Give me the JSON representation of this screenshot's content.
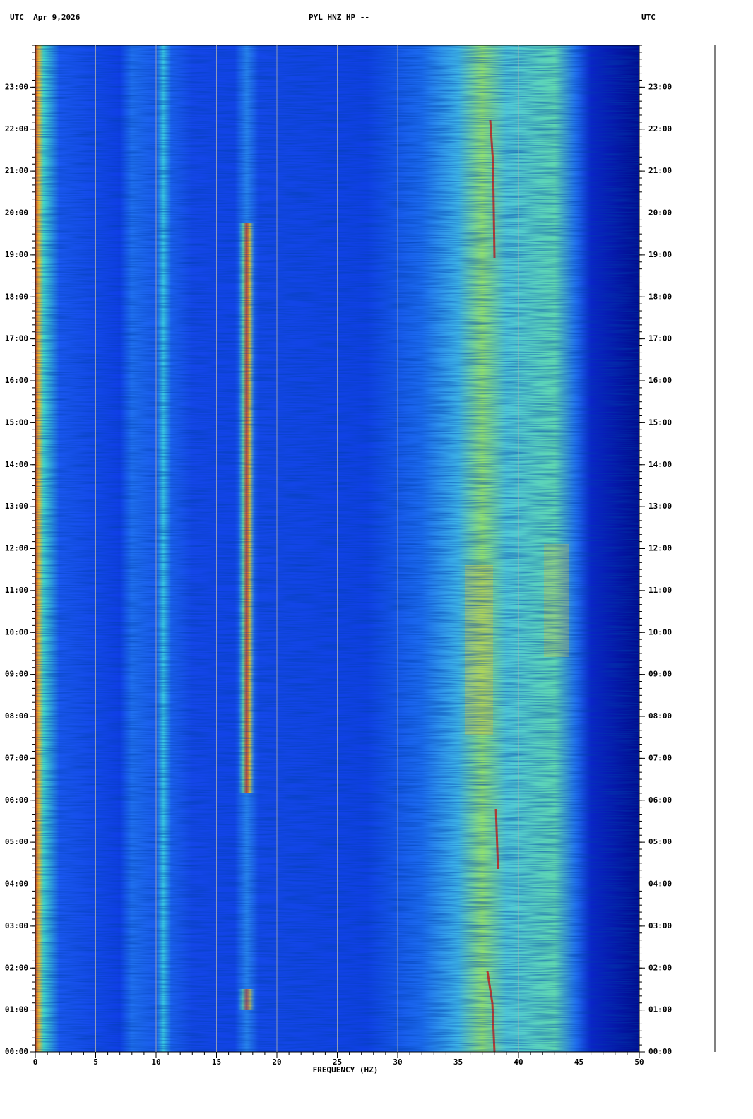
{
  "chart_data": {
    "type": "spectrogram",
    "title": "PYL HNZ HP --",
    "left_header": "UTC  Apr 9,2026",
    "right_header": "UTC",
    "x_label": "FREQUENCY (HZ)",
    "xlim": [
      0,
      50
    ],
    "xticks": [
      0,
      5,
      10,
      15,
      20,
      25,
      30,
      35,
      40,
      45,
      50
    ],
    "ylim": [
      0,
      24
    ],
    "yticks": [
      {
        "value": 0,
        "label": "00:00"
      },
      {
        "value": 1,
        "label": "01:00"
      },
      {
        "value": 2,
        "label": "02:00"
      },
      {
        "value": 3,
        "label": "03:00"
      },
      {
        "value": 4,
        "label": "04:00"
      },
      {
        "value": 5,
        "label": "05:00"
      },
      {
        "value": 6,
        "label": "06:00"
      },
      {
        "value": 7,
        "label": "07:00"
      },
      {
        "value": 8,
        "label": "08:00"
      },
      {
        "value": 9,
        "label": "09:00"
      },
      {
        "value": 10,
        "label": "10:00"
      },
      {
        "value": 11,
        "label": "11:00"
      },
      {
        "value": 12,
        "label": "12:00"
      },
      {
        "value": 13,
        "label": "13:00"
      },
      {
        "value": 14,
        "label": "14:00"
      },
      {
        "value": 15,
        "label": "15:00"
      },
      {
        "value": 16,
        "label": "16:00"
      },
      {
        "value": 17,
        "label": "17:00"
      },
      {
        "value": 18,
        "label": "18:00"
      },
      {
        "value": 19,
        "label": "19:00"
      },
      {
        "value": 20,
        "label": "20:00"
      },
      {
        "value": 21,
        "label": "21:00"
      },
      {
        "value": 22,
        "label": "22:00"
      },
      {
        "value": 23,
        "label": "23:00"
      }
    ],
    "grid": true
  }
}
